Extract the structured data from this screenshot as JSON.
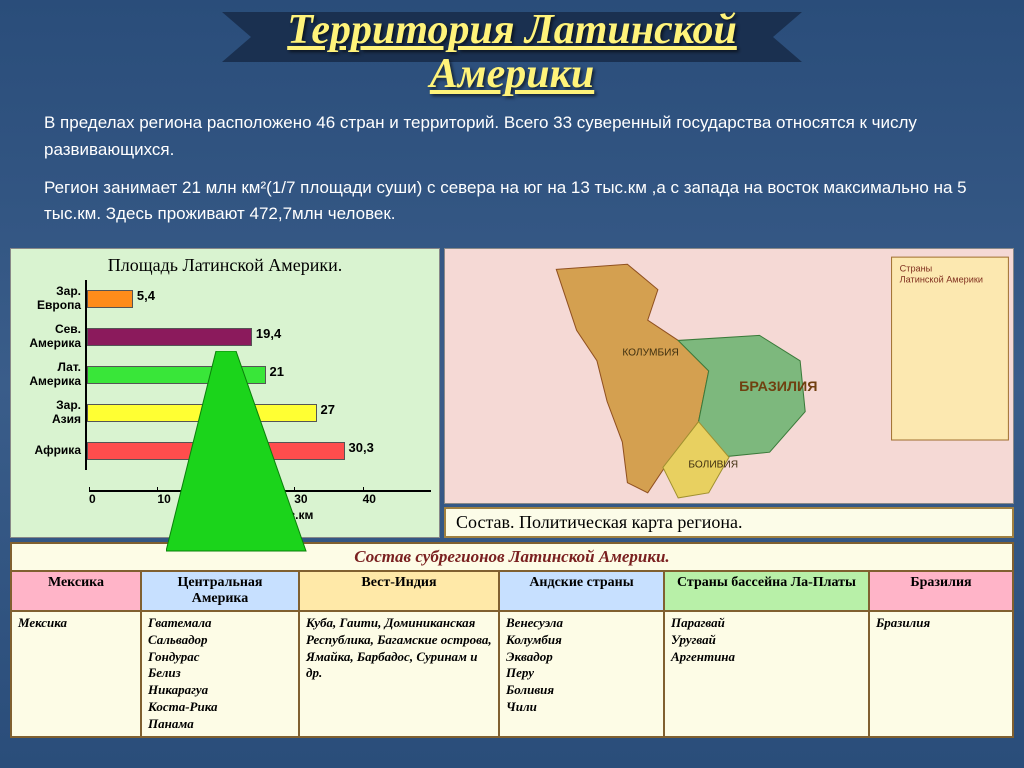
{
  "title": "Территория Латинской Америки",
  "paragraphs": [
    "В пределах региона расположено 46 стран и территорий. Всего 33 суверенный государства относятся к числу развивающихся.",
    "Регион занимает 21 млн км²(1/7 площади суши) с севера на юг на 13 тыс.км ,а с запада на восток максимально на 5 тыс.км. Здесь проживают 472,7млн человек."
  ],
  "chart": {
    "title": "Площадь Латинской Америки.",
    "type": "bar",
    "x_label": "площадь в млн.кв.км",
    "x_ticks": [
      "0",
      "10",
      "20",
      "30",
      "40"
    ],
    "xlim": [
      0,
      40
    ],
    "background_color": "#d9f3d0",
    "bars": [
      {
        "label": "Зар. Европа",
        "value": 5.4,
        "color": "#ff8c1a",
        "text": "5,4"
      },
      {
        "label": "Сев. Америка",
        "value": 19.4,
        "color": "#8b1a5c",
        "text": "19,4"
      },
      {
        "label": "Лат. Америка",
        "value": 21,
        "color": "#39e639",
        "text": "21"
      },
      {
        "label": "Зар. Азия",
        "value": 27,
        "color": "#ffff33",
        "text": "27"
      },
      {
        "label": "Африка",
        "value": 30.3,
        "color": "#ff4d4d",
        "text": "30,3"
      }
    ],
    "highlight_arrow_color": "#1bd41b"
  },
  "map": {
    "caption": "Состав. Политическая карта региона.",
    "background_color": "#f5d9d5",
    "legend_title": "Страны Латинской Америки"
  },
  "subregions": {
    "title": "Состав субрегионов Латинской Америки.",
    "columns": [
      {
        "name": "Мексика",
        "header_bg": "#ffb4c8",
        "items": [
          "Мексика"
        ]
      },
      {
        "name": "Центральная Америка",
        "header_bg": "#c7e0ff",
        "items": [
          "Гватемала",
          "Сальвадор",
          "Гондурас",
          "Белиз",
          "Никарагуа",
          "Коста-Рика",
          "Панама"
        ]
      },
      {
        "name": "Вест-Индия",
        "header_bg": "#ffe9a8",
        "items": [
          "Куба, Гаити, Доминиканская Республика, Багамские острова, Ямайка, Барбадос, Суринам и др."
        ]
      },
      {
        "name": "Андские страны",
        "header_bg": "#c7e0ff",
        "items": [
          "Венесуэла",
          "Колумбия",
          "Эквадор",
          "Перу",
          "Боливия",
          "Чили"
        ]
      },
      {
        "name": "Страны бассейна Ла-Платы",
        "header_bg": "#b8f0a8",
        "items": [
          "Парагвай",
          "Уругвай",
          "Аргентина"
        ]
      },
      {
        "name": "Бразилия",
        "header_bg": "#ffb4c8",
        "items": [
          "Бразилия"
        ]
      }
    ]
  }
}
